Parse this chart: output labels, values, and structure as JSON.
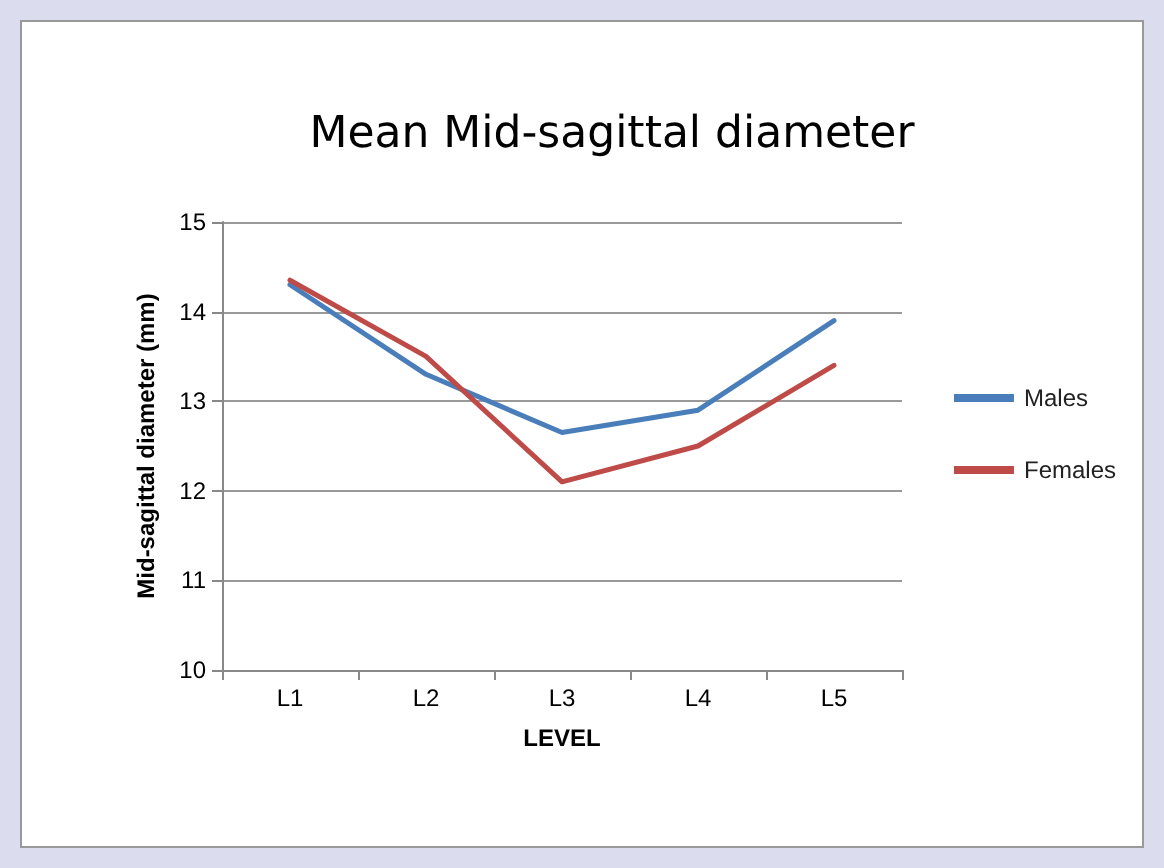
{
  "chart_data": {
    "type": "line",
    "title": "Mean Mid-sagittal diameter",
    "xlabel": "LEVEL",
    "ylabel": "Mid-sagittal diameter (mm)",
    "categories": [
      "L1",
      "L2",
      "L3",
      "L4",
      "L5"
    ],
    "series": [
      {
        "name": "Males",
        "color": "#4a7ebb",
        "values": [
          14.3,
          13.3,
          12.65,
          12.9,
          13.9
        ]
      },
      {
        "name": "Females",
        "color": "#be4b48",
        "values": [
          14.35,
          13.5,
          12.1,
          12.5,
          13.4
        ]
      }
    ],
    "ylim": [
      10,
      15
    ],
    "yticks": [
      10,
      11,
      12,
      13,
      14,
      15
    ],
    "grid": "y",
    "legend": "right",
    "marker": "none",
    "line_style": "solid"
  }
}
